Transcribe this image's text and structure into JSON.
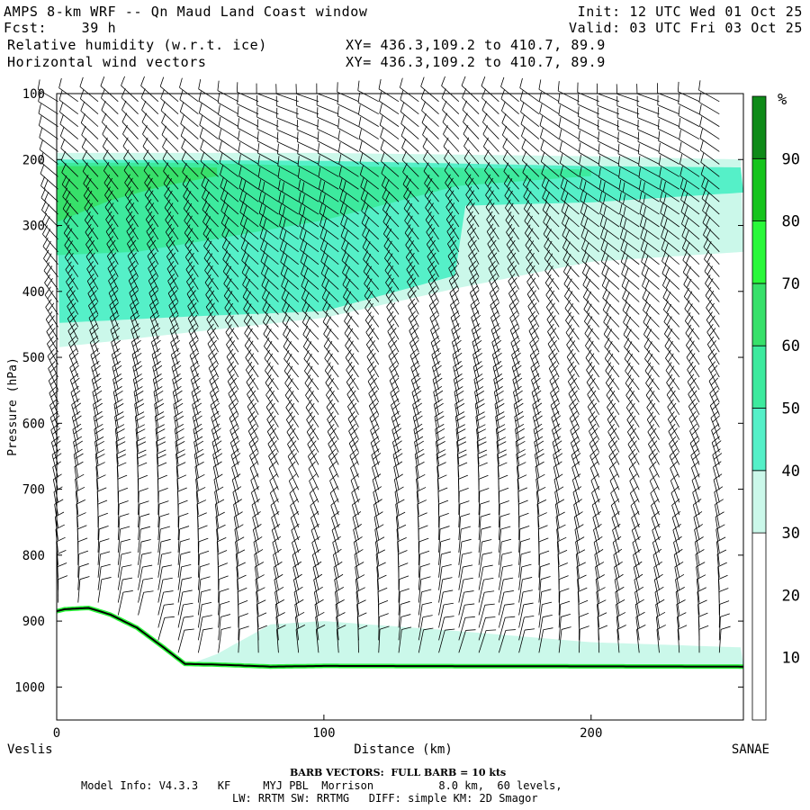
{
  "header": {
    "title": "AMPS 8-km WRF -- Qn Maud Land Coast window",
    "init": "Init: 12 UTC Wed 01 Oct 25",
    "fcst": "Fcst:    39 h",
    "valid": "Valid: 03 UTC Fri 03 Oct 25",
    "field1": "Relative humidity (w.r.t. ice)",
    "field2": "Horizontal wind vectors",
    "xy1": "XY= 436.3,109.2 to 410.7, 89.9",
    "xy2": "XY= 436.3,109.2 to 410.7, 89.9"
  },
  "footer": {
    "barb_caption": "BARB VECTORS:  FULL BARB = 10 kts",
    "model_line1": "Model Info: V4.3.3   KF     MYJ PBL  Morrison          8.0 km,  60 levels,",
    "model_line2": "LW: RRTM SW: RRTMG   DIFF: simple KM: 2D Smagor"
  },
  "chart_data": {
    "type": "cross-section",
    "title": "Relative humidity (w.r.t. ice) and horizontal wind vectors",
    "xlabel": "Distance (km)",
    "ylabel": "Pressure (hPa)",
    "x_ticks": [
      0,
      100,
      200
    ],
    "xlim": [
      0,
      257
    ],
    "y_ticks": [
      100,
      200,
      300,
      400,
      500,
      600,
      700,
      800,
      900,
      1000
    ],
    "ylim": [
      1050,
      100
    ],
    "left_endpoint": "Veslis",
    "right_endpoint": "SANAE",
    "colorbar": {
      "unit": "%",
      "labels": [
        10,
        20,
        30,
        40,
        50,
        60,
        70,
        80,
        90
      ],
      "levels": [
        0,
        30,
        40,
        50,
        60,
        70,
        80,
        90,
        100
      ],
      "colors": [
        "#ffffff",
        "#cbf8ea",
        "#55f0c8",
        "#3dea9e",
        "#37e06a",
        "#2af83a",
        "#16c41d",
        "#0e8a18"
      ]
    },
    "rh_regions": [
      {
        "level": "30-40%",
        "color": "#cbf8ea",
        "top_hPa": [
          [
            0,
            190
          ],
          [
            100,
            190
          ],
          [
            200,
            195
          ],
          [
            257,
            200
          ]
        ],
        "bottom_hPa": [
          [
            0,
            485
          ],
          [
            50,
            462
          ],
          [
            100,
            440
          ],
          [
            150,
            395
          ],
          [
            200,
            355
          ],
          [
            257,
            340
          ]
        ]
      },
      {
        "level": "40-50%",
        "color": "#55f0c8",
        "top_hPa": [
          [
            0,
            200
          ],
          [
            100,
            202
          ],
          [
            200,
            210
          ],
          [
            257,
            212
          ]
        ],
        "bottom_hPa": [
          [
            0,
            448
          ],
          [
            50,
            438
          ],
          [
            100,
            430
          ],
          [
            150,
            375
          ],
          [
            152,
            270
          ],
          [
            200,
            265
          ],
          [
            257,
            250
          ]
        ]
      },
      {
        "level": "50-60%",
        "color": "#3dea9e",
        "top_hPa": [
          [
            0,
            205
          ],
          [
            50,
            205
          ],
          [
            100,
            210
          ],
          [
            200,
            215
          ]
        ],
        "bottom_hPa": [
          [
            0,
            345
          ],
          [
            30,
            340
          ],
          [
            60,
            320
          ],
          [
            100,
            292
          ],
          [
            150,
            240
          ],
          [
            200,
            225
          ]
        ]
      },
      {
        "level": "60-70%",
        "color": "#37e06a",
        "top_hPa": [
          [
            0,
            210
          ],
          [
            25,
            210
          ],
          [
            50,
            212
          ]
        ],
        "bottom_hPa": [
          [
            0,
            295
          ],
          [
            20,
            262
          ],
          [
            40,
            240
          ],
          [
            60,
            225
          ]
        ]
      },
      {
        "level": "30-40% low-level",
        "color": "#cbf8ea",
        "top_hPa": [
          [
            50,
            965
          ],
          [
            60,
            950
          ],
          [
            80,
            905
          ],
          [
            100,
            900
          ],
          [
            150,
            915
          ],
          [
            200,
            932
          ],
          [
            257,
            940
          ]
        ],
        "bottom_hPa": [
          [
            50,
            966
          ],
          [
            257,
            966
          ]
        ]
      }
    ],
    "terrain_hPa": [
      [
        0,
        885
      ],
      [
        3,
        882
      ],
      [
        12,
        880
      ],
      [
        20,
        890
      ],
      [
        30,
        910
      ],
      [
        40,
        940
      ],
      [
        48,
        965
      ],
      [
        60,
        966
      ],
      [
        80,
        969
      ],
      [
        100,
        968
      ],
      [
        257,
        969
      ]
    ],
    "wind_barbs": "Barb columns every ~7.5 km from 0 to 250 km on model levels above terrain; speed 5-20 kts"
  }
}
